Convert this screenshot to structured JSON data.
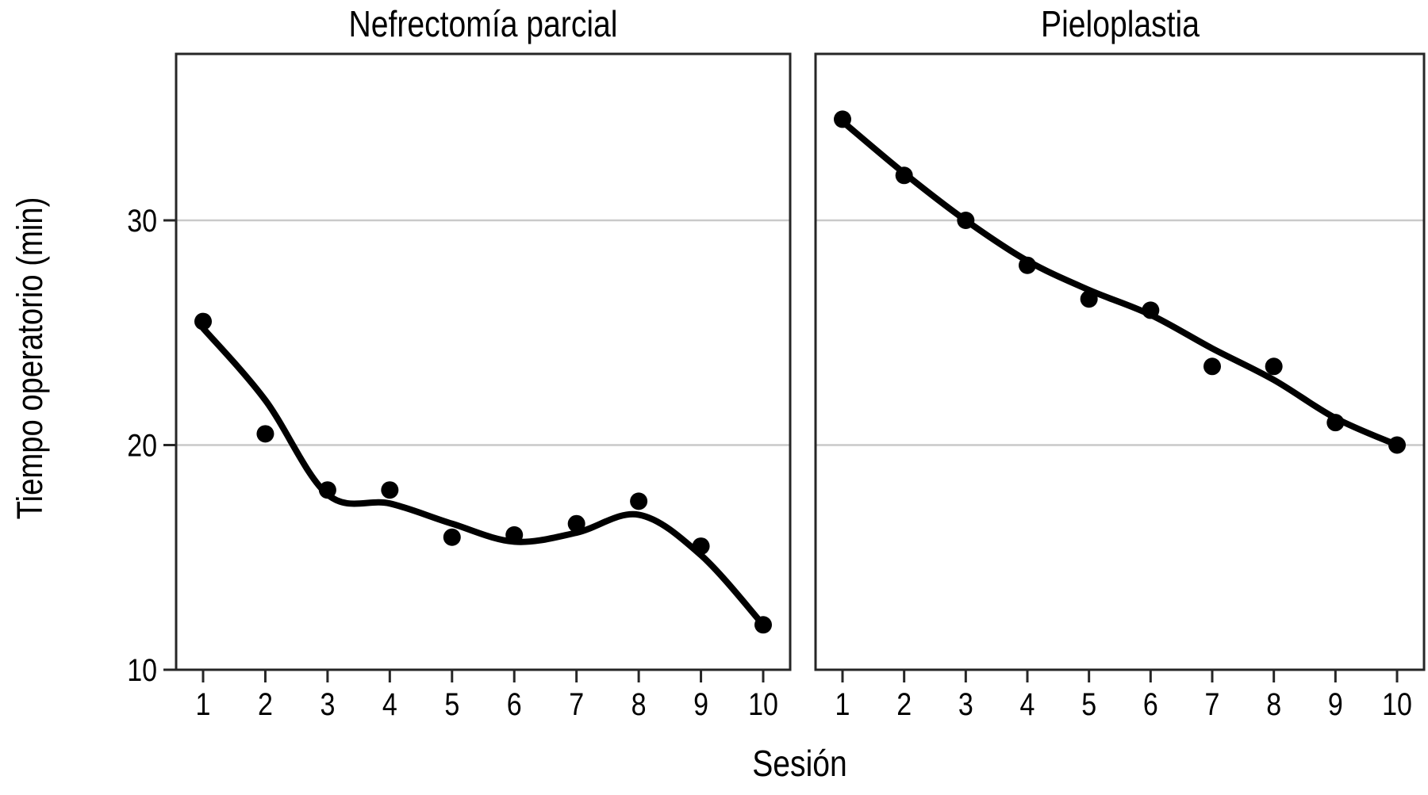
{
  "figure": {
    "ylabel": "Tiempo operatorio (min)",
    "xlabel": "Sesión",
    "background": "#ffffff",
    "colors": {
      "point": "#000000",
      "trend_line": "#000000",
      "grid": "#c9c9c9",
      "axis": "#262626",
      "text": "#000000"
    }
  },
  "chart_data": [
    {
      "type": "scatter",
      "title": "Nefrectomía parcial",
      "xlabel": "Sesión",
      "ylabel": "Tiempo operatorio (min)",
      "x": [
        1,
        2,
        3,
        4,
        5,
        6,
        7,
        8,
        9,
        10
      ],
      "values": [
        25.5,
        20.5,
        18.0,
        18.0,
        15.9,
        16.0,
        16.5,
        17.5,
        15.5,
        12.0
      ],
      "trend_values": [
        25.2,
        22.0,
        17.8,
        17.4,
        16.5,
        15.7,
        16.1,
        16.9,
        15.1,
        12.0
      ],
      "trend": "loess-smoother",
      "marker": "filled-circle",
      "xticks": [
        "1",
        "2",
        "3",
        "4",
        "5",
        "6",
        "7",
        "8",
        "9",
        "10"
      ],
      "yticks": [
        {
          "value": 10,
          "label": "10"
        },
        {
          "value": 20,
          "label": "20"
        },
        {
          "value": 30,
          "label": "30"
        }
      ],
      "show_ytick_labels": true,
      "gridlines": [
        20,
        30
      ],
      "ylim": [
        10,
        37.4
      ],
      "grid": "horizontal",
      "legend": "none"
    },
    {
      "type": "scatter",
      "title": "Pieloplastia",
      "xlabel": "Sesión",
      "ylabel": "Tiempo operatorio (min)",
      "x": [
        1,
        2,
        3,
        4,
        5,
        6,
        7,
        8,
        9,
        10
      ],
      "values": [
        34.5,
        32.0,
        30.0,
        28.0,
        26.5,
        26.0,
        23.5,
        23.5,
        21.0,
        20.0
      ],
      "trend_values": [
        34.4,
        32.1,
        30.0,
        28.2,
        26.9,
        25.8,
        24.3,
        22.9,
        21.2,
        20.0
      ],
      "trend": "loess-smoother",
      "marker": "filled-circle",
      "xticks": [
        "1",
        "2",
        "3",
        "4",
        "5",
        "6",
        "7",
        "8",
        "9",
        "10"
      ],
      "yticks": [
        {
          "value": 10,
          "label": "10"
        },
        {
          "value": 20,
          "label": "20"
        },
        {
          "value": 30,
          "label": "30"
        }
      ],
      "show_ytick_labels": false,
      "gridlines": [
        20,
        30
      ],
      "ylim": [
        10,
        37.4
      ],
      "grid": "horizontal",
      "legend": "none"
    }
  ]
}
